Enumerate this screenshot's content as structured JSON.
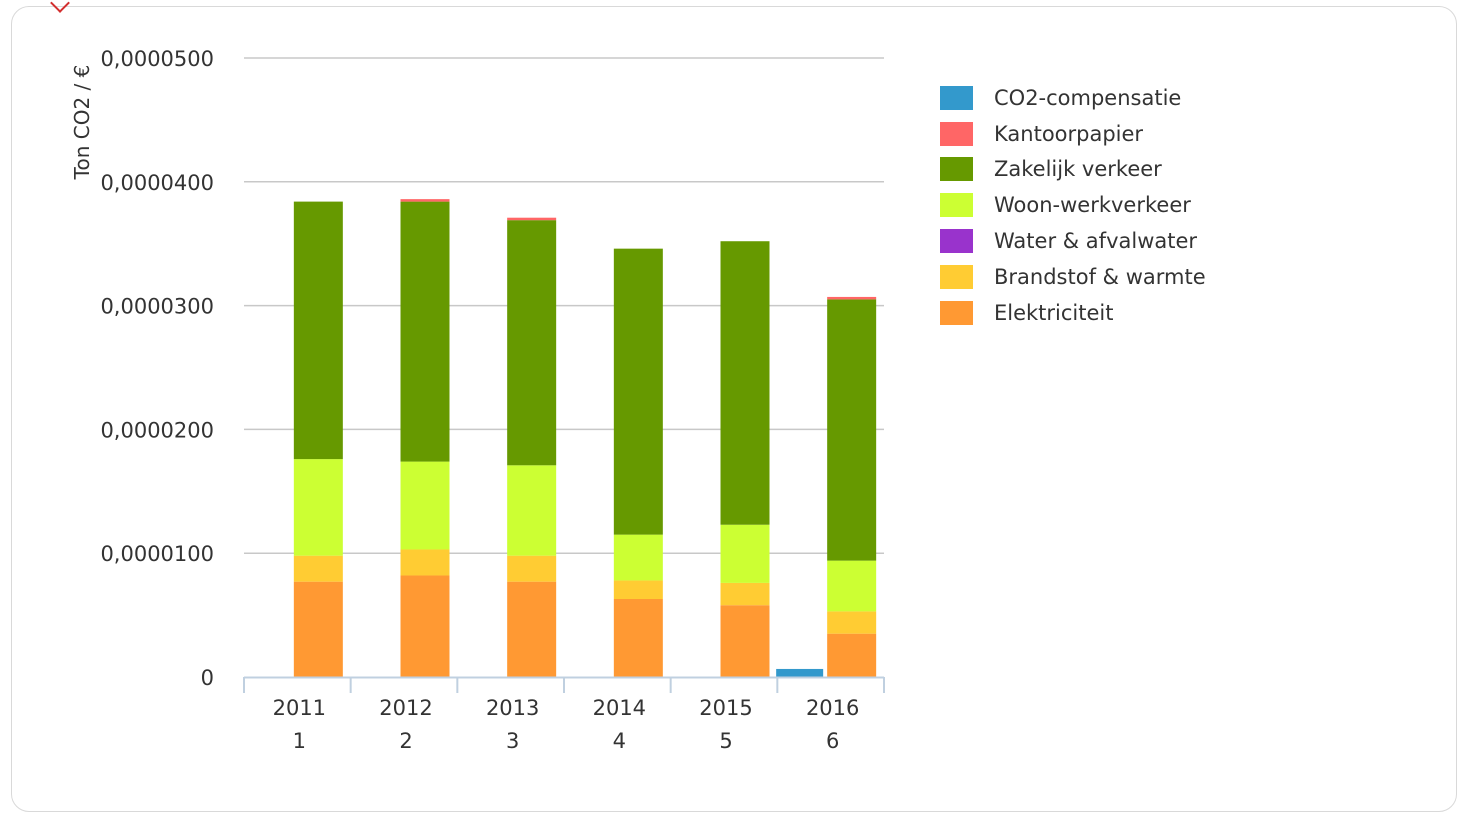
{
  "chart_data": {
    "type": "bar",
    "stacked": true,
    "title": "",
    "xlabel": "",
    "ylabel": "Ton CO2 / €",
    "ylim": [
      0,
      5e-05
    ],
    "yticks": [
      "0",
      "0,0000100",
      "0,0000200",
      "0,0000300",
      "0,0000400",
      "0,0000500"
    ],
    "grid": true,
    "legend_position": "right",
    "categories": [
      [
        "2011",
        "1"
      ],
      [
        "2012",
        "2"
      ],
      [
        "2013",
        "3"
      ],
      [
        "2014",
        "4"
      ],
      [
        "2015",
        "5"
      ],
      [
        "2016",
        "6"
      ]
    ],
    "series": [
      {
        "name": "CO2-compensatie",
        "color": "#3399cc",
        "stack": "compensation",
        "values": [
          0,
          0,
          0,
          0,
          0,
          6.5e-07
        ]
      },
      {
        "name": "Kantoorpapier",
        "color": "#ff6666",
        "stack": "main",
        "values": [
          0,
          2e-07,
          2e-07,
          0,
          0,
          2e-07
        ]
      },
      {
        "name": "Zakelijk verkeer",
        "color": "#669900",
        "stack": "main",
        "values": [
          2.08e-05,
          2.1e-05,
          1.98e-05,
          2.31e-05,
          2.29e-05,
          2.11e-05
        ]
      },
      {
        "name": "Woon-werkverkeer",
        "color": "#ccff33",
        "stack": "main",
        "values": [
          7.8e-06,
          7.1e-06,
          7.3e-06,
          3.7e-06,
          4.7e-06,
          4.1e-06
        ]
      },
      {
        "name": "Water & afvalwater",
        "color": "#9933cc",
        "stack": "main",
        "values": [
          0,
          0,
          0,
          0,
          0,
          0
        ]
      },
      {
        "name": "Brandstof & warmte",
        "color": "#ffcc33",
        "stack": "main",
        "values": [
          2.1e-06,
          2.1e-06,
          2.1e-06,
          1.5e-06,
          1.8e-06,
          1.8e-06
        ]
      },
      {
        "name": "Elektriciteit",
        "color": "#ff9933",
        "stack": "main",
        "values": [
          7.7e-06,
          8.2e-06,
          7.7e-06,
          6.3e-06,
          5.8e-06,
          3.5e-06
        ]
      }
    ]
  }
}
